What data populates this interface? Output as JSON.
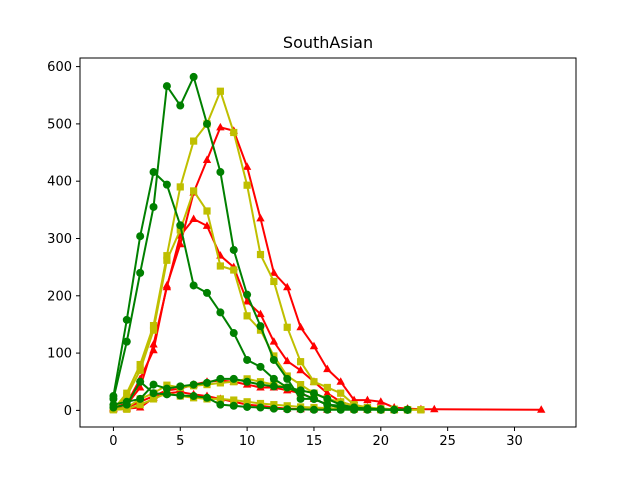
{
  "chart_data": {
    "type": "line",
    "title": "SouthAsian",
    "xlabel": "",
    "ylabel": "",
    "xlim": [
      -2.5,
      34.6
    ],
    "ylim": [
      -29,
      615
    ],
    "x_ticks": [
      0,
      5,
      10,
      15,
      20,
      25,
      30
    ],
    "y_ticks": [
      0,
      100,
      200,
      300,
      400,
      500,
      600
    ],
    "grid": false,
    "legend": "none",
    "series": [
      {
        "color": "#ff0000",
        "marker": "triangle",
        "points": [
          [
            0,
            5
          ],
          [
            1,
            12
          ],
          [
            2,
            55
          ],
          [
            3,
            105
          ],
          [
            4,
            218
          ],
          [
            5,
            290
          ],
          [
            6,
            380
          ],
          [
            7,
            437
          ],
          [
            8,
            494
          ],
          [
            9,
            488
          ],
          [
            10,
            425
          ],
          [
            11,
            335
          ],
          [
            12,
            240
          ],
          [
            13,
            215
          ],
          [
            14,
            145
          ],
          [
            15,
            112
          ],
          [
            16,
            72
          ],
          [
            17,
            50
          ],
          [
            18,
            18
          ],
          [
            19,
            18
          ],
          [
            20,
            15
          ],
          [
            21,
            5
          ],
          [
            22,
            3
          ],
          [
            23,
            2
          ],
          [
            24,
            2
          ],
          [
            32,
            1
          ]
        ]
      },
      {
        "color": "#ff0000",
        "marker": "triangle",
        "points": [
          [
            0,
            5
          ],
          [
            1,
            10
          ],
          [
            2,
            40
          ],
          [
            3,
            115
          ],
          [
            4,
            215
          ],
          [
            5,
            305
          ],
          [
            6,
            334
          ],
          [
            7,
            322
          ],
          [
            8,
            270
          ],
          [
            9,
            250
          ],
          [
            10,
            190
          ],
          [
            11,
            168
          ],
          [
            12,
            120
          ],
          [
            13,
            86
          ],
          [
            14,
            70
          ],
          [
            15,
            50
          ],
          [
            16,
            30
          ],
          [
            17,
            15
          ],
          [
            18,
            8
          ],
          [
            19,
            5
          ],
          [
            20,
            2
          ],
          [
            21,
            1
          ]
        ]
      },
      {
        "color": "#ff0000",
        "marker": "triangle",
        "points": [
          [
            0,
            3
          ],
          [
            1,
            5
          ],
          [
            2,
            15
          ],
          [
            3,
            25
          ],
          [
            4,
            35
          ],
          [
            5,
            38
          ],
          [
            6,
            45
          ],
          [
            7,
            50
          ],
          [
            8,
            52
          ],
          [
            9,
            50
          ],
          [
            10,
            45
          ],
          [
            11,
            40
          ],
          [
            12,
            40
          ],
          [
            13,
            35
          ],
          [
            14,
            30
          ],
          [
            15,
            20
          ],
          [
            16,
            10
          ],
          [
            17,
            5
          ],
          [
            18,
            2
          ],
          [
            19,
            1
          ]
        ]
      },
      {
        "color": "#ff0000",
        "marker": "triangle",
        "points": [
          [
            0,
            2
          ],
          [
            1,
            3
          ],
          [
            2,
            5
          ],
          [
            3,
            22
          ],
          [
            4,
            30
          ],
          [
            5,
            32
          ],
          [
            6,
            28
          ],
          [
            7,
            25
          ],
          [
            8,
            20
          ],
          [
            9,
            15
          ],
          [
            10,
            10
          ],
          [
            11,
            8
          ],
          [
            12,
            5
          ],
          [
            13,
            3
          ],
          [
            14,
            2
          ],
          [
            15,
            2
          ],
          [
            16,
            1
          ]
        ]
      },
      {
        "color": "#bfbf00",
        "marker": "square",
        "points": [
          [
            0,
            2
          ],
          [
            1,
            30
          ],
          [
            2,
            80
          ],
          [
            3,
            148
          ],
          [
            4,
            270
          ],
          [
            5,
            390
          ],
          [
            6,
            470
          ],
          [
            7,
            500
          ],
          [
            8,
            557
          ],
          [
            9,
            485
          ],
          [
            10,
            393
          ],
          [
            11,
            272
          ],
          [
            12,
            225
          ],
          [
            13,
            145
          ],
          [
            14,
            85
          ],
          [
            15,
            50
          ],
          [
            16,
            40
          ],
          [
            17,
            30
          ],
          [
            18,
            10
          ],
          [
            19,
            5
          ],
          [
            20,
            3
          ],
          [
            21,
            2
          ],
          [
            22,
            1
          ]
        ]
      },
      {
        "color": "#bfbf00",
        "marker": "square",
        "points": [
          [
            0,
            3
          ],
          [
            1,
            25
          ],
          [
            2,
            70
          ],
          [
            3,
            140
          ],
          [
            4,
            262
          ],
          [
            5,
            315
          ],
          [
            6,
            383
          ],
          [
            7,
            348
          ],
          [
            8,
            252
          ],
          [
            9,
            245
          ],
          [
            10,
            165
          ],
          [
            11,
            140
          ],
          [
            12,
            95
          ],
          [
            13,
            60
          ],
          [
            14,
            45
          ],
          [
            15,
            30
          ],
          [
            16,
            20
          ],
          [
            17,
            10
          ],
          [
            18,
            5
          ],
          [
            19,
            3
          ],
          [
            20,
            2
          ],
          [
            21,
            1
          ],
          [
            22,
            1
          ]
        ]
      },
      {
        "color": "#bfbf00",
        "marker": "square",
        "points": [
          [
            0,
            2
          ],
          [
            1,
            5
          ],
          [
            2,
            20
          ],
          [
            3,
            30
          ],
          [
            4,
            44
          ],
          [
            5,
            40
          ],
          [
            6,
            43
          ],
          [
            7,
            45
          ],
          [
            8,
            48
          ],
          [
            9,
            50
          ],
          [
            10,
            55
          ],
          [
            11,
            50
          ],
          [
            12,
            45
          ],
          [
            13,
            40
          ],
          [
            14,
            35
          ],
          [
            15,
            30
          ],
          [
            16,
            20
          ],
          [
            17,
            15
          ],
          [
            18,
            8
          ],
          [
            19,
            5
          ],
          [
            20,
            3
          ],
          [
            21,
            2
          ],
          [
            22,
            1
          ],
          [
            23,
            1
          ]
        ]
      },
      {
        "color": "#bfbf00",
        "marker": "square",
        "points": [
          [
            0,
            1
          ],
          [
            1,
            2
          ],
          [
            2,
            10
          ],
          [
            3,
            20
          ],
          [
            4,
            30
          ],
          [
            5,
            25
          ],
          [
            6,
            22
          ],
          [
            7,
            20
          ],
          [
            8,
            20
          ],
          [
            9,
            18
          ],
          [
            10,
            15
          ],
          [
            11,
            12
          ],
          [
            12,
            10
          ],
          [
            13,
            8
          ],
          [
            14,
            6
          ],
          [
            15,
            5
          ],
          [
            16,
            4
          ],
          [
            17,
            3
          ],
          [
            18,
            2
          ],
          [
            19,
            2
          ],
          [
            20,
            1
          ],
          [
            21,
            1
          ],
          [
            22,
            1
          ],
          [
            23,
            1
          ]
        ]
      },
      {
        "color": "#008000",
        "marker": "circle",
        "points": [
          [
            0,
            25
          ],
          [
            1,
            158
          ],
          [
            2,
            304
          ],
          [
            3,
            416
          ],
          [
            4,
            394
          ],
          [
            5,
            323
          ],
          [
            6,
            218
          ],
          [
            7,
            205
          ],
          [
            8,
            171
          ],
          [
            9,
            135
          ],
          [
            10,
            88
          ],
          [
            11,
            76
          ],
          [
            12,
            55
          ],
          [
            13,
            40
          ],
          [
            14,
            30
          ],
          [
            15,
            20
          ],
          [
            16,
            10
          ],
          [
            17,
            8
          ],
          [
            18,
            5
          ],
          [
            19,
            3
          ],
          [
            20,
            2
          ],
          [
            21,
            1
          ],
          [
            22,
            1
          ]
        ]
      },
      {
        "color": "#008000",
        "marker": "circle",
        "points": [
          [
            0,
            20
          ],
          [
            1,
            120
          ],
          [
            2,
            240
          ],
          [
            3,
            355
          ],
          [
            4,
            566
          ],
          [
            5,
            532
          ],
          [
            6,
            582
          ],
          [
            7,
            500
          ],
          [
            8,
            416
          ],
          [
            9,
            280
          ],
          [
            10,
            202
          ],
          [
            11,
            147
          ],
          [
            12,
            88
          ],
          [
            13,
            55
          ],
          [
            14,
            20
          ],
          [
            15,
            20
          ],
          [
            16,
            10
          ],
          [
            17,
            5
          ],
          [
            18,
            3
          ],
          [
            19,
            2
          ],
          [
            20,
            1
          ],
          [
            21,
            1
          ],
          [
            22,
            1
          ]
        ]
      },
      {
        "color": "#008000",
        "marker": "circle",
        "points": [
          [
            0,
            10
          ],
          [
            1,
            15
          ],
          [
            2,
            20
          ],
          [
            3,
            45
          ],
          [
            4,
            38
          ],
          [
            5,
            42
          ],
          [
            6,
            45
          ],
          [
            7,
            48
          ],
          [
            8,
            55
          ],
          [
            9,
            55
          ],
          [
            10,
            50
          ],
          [
            11,
            45
          ],
          [
            12,
            42
          ],
          [
            13,
            40
          ],
          [
            14,
            35
          ],
          [
            15,
            30
          ],
          [
            16,
            20
          ],
          [
            17,
            10
          ],
          [
            18,
            5
          ],
          [
            19,
            3
          ],
          [
            20,
            2
          ],
          [
            21,
            1
          ],
          [
            22,
            1
          ]
        ]
      },
      {
        "color": "#008000",
        "marker": "circle",
        "points": [
          [
            0,
            5
          ],
          [
            1,
            10
          ],
          [
            2,
            50
          ],
          [
            3,
            30
          ],
          [
            4,
            28
          ],
          [
            5,
            26
          ],
          [
            6,
            25
          ],
          [
            7,
            22
          ],
          [
            8,
            10
          ],
          [
            9,
            8
          ],
          [
            10,
            6
          ],
          [
            11,
            5
          ],
          [
            12,
            3
          ],
          [
            13,
            2
          ],
          [
            14,
            2
          ],
          [
            15,
            1
          ],
          [
            16,
            1
          ],
          [
            17,
            1
          ],
          [
            18,
            1
          ],
          [
            19,
            1
          ],
          [
            20,
            1
          ],
          [
            21,
            1
          ],
          [
            22,
            1
          ]
        ]
      }
    ]
  }
}
